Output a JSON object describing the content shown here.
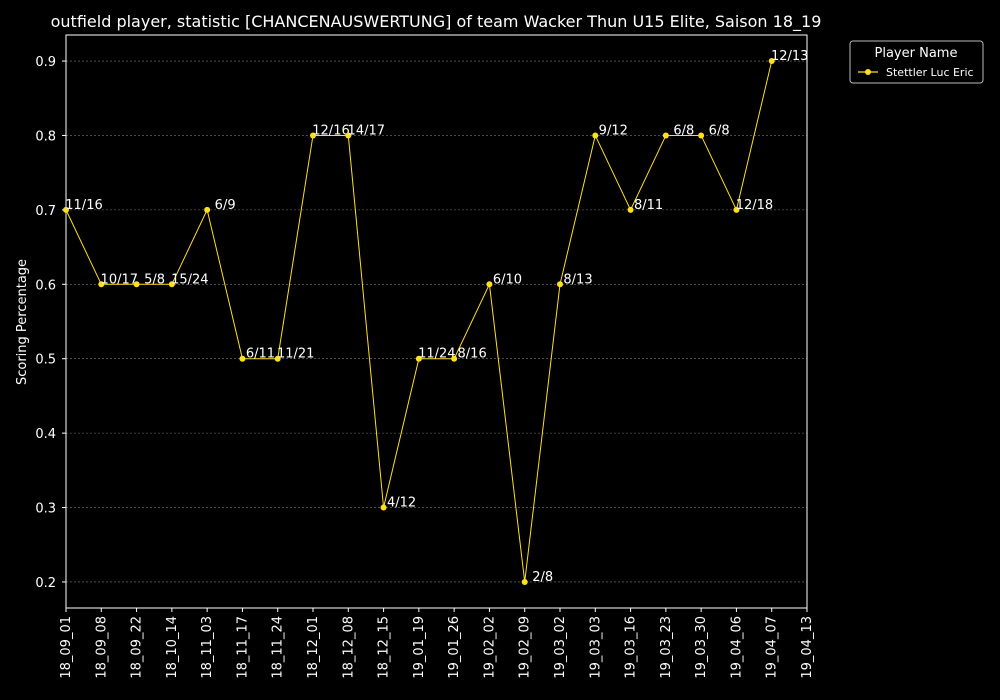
{
  "chart_data": {
    "type": "line",
    "title": "outfield player, statistic [CHANCENAUSWERTUNG] of team Wacker Thun U15 Elite, Saison 18_19",
    "xlabel": "",
    "ylabel": "Scoring Percentage",
    "x": [
      "18_09_01",
      "18_09_08",
      "18_09_22",
      "18_10_14",
      "18_11_03",
      "18_11_17",
      "18_11_24",
      "18_12_01",
      "18_12_08",
      "18_12_15",
      "19_01_19",
      "19_01_26",
      "19_02_02",
      "19_02_09",
      "19_03_02",
      "19_03_03",
      "19_03_16",
      "19_03_23",
      "19_03_30",
      "19_04_06",
      "19_04_07",
      "19_04_13"
    ],
    "ylim": [
      0.165,
      0.935
    ],
    "yticks": [
      0.2,
      0.3,
      0.4,
      0.5,
      0.6,
      0.7,
      0.8,
      0.9
    ],
    "grid": true,
    "legend": {
      "title": "Player Name",
      "position": "outside top-right"
    },
    "series": [
      {
        "name": "Stettler Luc Eric",
        "color": "#ffe01a",
        "x": [
          "18_09_01",
          "18_09_08",
          "18_09_22",
          "18_10_14",
          "18_11_03",
          "18_11_17",
          "18_11_24",
          "18_12_01",
          "18_12_08",
          "18_12_15",
          "19_01_19",
          "19_01_26",
          "19_02_02",
          "19_02_09",
          "19_03_02",
          "19_03_03",
          "19_03_16",
          "19_03_23",
          "19_03_30",
          "19_04_06",
          "19_04_07"
        ],
        "values": [
          0.7,
          0.6,
          0.6,
          0.6,
          0.7,
          0.5,
          0.5,
          0.8,
          0.8,
          0.3,
          0.5,
          0.5,
          0.6,
          0.2,
          0.6,
          0.8,
          0.7,
          0.8,
          0.8,
          0.7,
          0.9
        ],
        "labels": [
          "11/16",
          "10/17",
          "5/8",
          "15/24",
          "6/9",
          "6/11",
          "11/21",
          "12/16",
          "14/17",
          "4/12",
          "11/24",
          "8/16",
          "6/10",
          "2/8",
          "8/13",
          "9/12",
          "8/11",
          "6/8",
          "6/8",
          "12/18",
          "12/13"
        ]
      }
    ]
  }
}
